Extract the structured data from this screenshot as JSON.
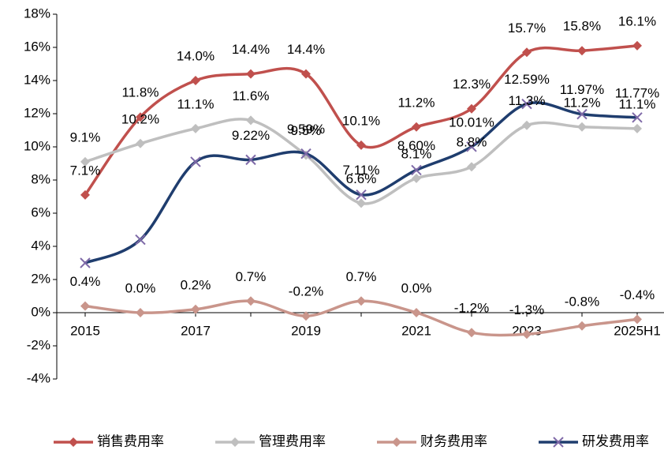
{
  "chart_data": {
    "type": "line",
    "categories": [
      "2015",
      null,
      "2017",
      null,
      "2019",
      null,
      "2021",
      null,
      "2023",
      null,
      "2025H1"
    ],
    "ylim": [
      -4,
      18
    ],
    "yticks": [
      {
        "value": -4,
        "label": "-4%"
      },
      {
        "value": -2,
        "label": "-2%"
      },
      {
        "value": 0,
        "label": "0%"
      },
      {
        "value": 2,
        "label": "2%"
      },
      {
        "value": 4,
        "label": "4%"
      },
      {
        "value": 6,
        "label": "6%"
      },
      {
        "value": 8,
        "label": "8%"
      },
      {
        "value": 10,
        "label": "10%"
      },
      {
        "value": 12,
        "label": "12%"
      },
      {
        "value": 14,
        "label": "14%"
      },
      {
        "value": 16,
        "label": "16%"
      },
      {
        "value": 18,
        "label": "18%"
      }
    ],
    "grid": false,
    "legend": "bottom",
    "smooth": true,
    "series": [
      {
        "name": "销售费用率",
        "color": "#c0504d",
        "marker": "diamond",
        "values": [
          7.1,
          11.8,
          14.0,
          14.4,
          14.4,
          10.1,
          11.2,
          12.3,
          15.7,
          15.8,
          16.1
        ],
        "value_labels": [
          "7.1%",
          "11.8%",
          "14.0%",
          "14.4%",
          "14.4%",
          "10.1%",
          "11.2%",
          "12.3%",
          "15.7%",
          "15.8%",
          "16.1%"
        ]
      },
      {
        "name": "管理费用率",
        "color": "#bfbfbf",
        "marker": "diamond",
        "values": [
          9.1,
          10.2,
          11.1,
          11.6,
          9.5,
          6.6,
          8.1,
          8.8,
          11.3,
          11.2,
          11.1
        ],
        "value_labels": [
          "9.1%",
          "10.2%",
          "11.1%",
          "11.6%",
          "9.5%",
          "6.6%",
          "8.1%",
          "8.8%",
          "11.3%",
          "11.2%",
          "11.1%"
        ]
      },
      {
        "name": "财务费用率",
        "color": "#c9958b",
        "marker": "diamond",
        "values": [
          0.4,
          0.0,
          0.2,
          0.7,
          -0.2,
          0.7,
          0.0,
          -1.2,
          -1.3,
          -0.8,
          -0.4
        ],
        "value_labels": [
          "0.4%",
          "0.0%",
          "0.2%",
          "0.7%",
          "-0.2%",
          "0.7%",
          "0.0%",
          "-1.2%",
          "-1.3%",
          "-0.8%",
          "-0.4%"
        ]
      },
      {
        "name": "研发费用率",
        "color": "#1f3d6e",
        "marker": "x",
        "values": [
          3.0,
          4.4,
          9.1,
          9.22,
          9.59,
          7.11,
          8.6,
          10.01,
          12.59,
          11.97,
          11.77
        ],
        "value_labels": [
          null,
          null,
          null,
          "9.22%",
          "9.59%",
          "7.11%",
          "8.60%",
          "10.01%",
          "12.59%",
          "11.97%",
          "11.77%"
        ]
      }
    ]
  }
}
